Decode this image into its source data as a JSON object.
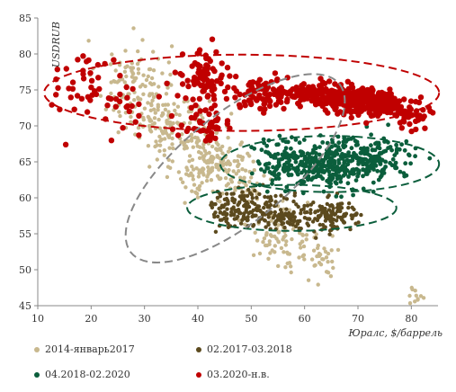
{
  "chart_data": {
    "type": "scatter",
    "xlabel": "Юралс, $/баррель",
    "ylabel": "USDRUB",
    "xlim": [
      10,
      85
    ],
    "ylim": [
      45,
      85
    ],
    "x_ticks": [
      10,
      20,
      30,
      40,
      50,
      60,
      70,
      80
    ],
    "y_ticks": [
      45,
      50,
      55,
      60,
      65,
      70,
      75,
      80,
      85
    ],
    "grid": false,
    "legend_position": "bottom",
    "series": [
      {
        "name": "2014-январь2017",
        "color": "#c8b88e",
        "marker_size": 2.2,
        "cloud": [
          {
            "cx": 28,
            "cy": 76,
            "sx": 3.5,
            "sy": 3.0,
            "n": 110
          },
          {
            "cx": 35,
            "cy": 70,
            "sx": 3.5,
            "sy": 2.2,
            "n": 120
          },
          {
            "cx": 42,
            "cy": 65,
            "sx": 3.0,
            "sy": 2.5,
            "n": 150
          },
          {
            "cx": 48,
            "cy": 63,
            "sx": 2.5,
            "sy": 2.0,
            "n": 60
          },
          {
            "cx": 56,
            "cy": 55,
            "sx": 3.5,
            "sy": 2.5,
            "n": 90
          },
          {
            "cx": 63,
            "cy": 51,
            "sx": 2.0,
            "sy": 1.5,
            "n": 30
          },
          {
            "cx": 81,
            "cy": 46.5,
            "sx": 1.2,
            "sy": 0.6,
            "n": 12
          }
        ]
      },
      {
        "name": "02.2017-03.2018",
        "color": "#5c4a1e",
        "marker_size": 2.2,
        "cloud": [
          {
            "cx": 48,
            "cy": 58.5,
            "sx": 3.0,
            "sy": 1.3,
            "n": 140
          },
          {
            "cx": 56,
            "cy": 58,
            "sx": 2.5,
            "sy": 1.3,
            "n": 90
          },
          {
            "cx": 65,
            "cy": 57.5,
            "sx": 3.0,
            "sy": 1.1,
            "n": 120
          }
        ]
      },
      {
        "name": "04.2018-02.2020",
        "color": "#0b5e3c",
        "marker_size": 2.4,
        "cloud": [
          {
            "cx": 64,
            "cy": 64.5,
            "sx": 5.0,
            "sy": 1.6,
            "n": 330
          },
          {
            "cx": 73,
            "cy": 65.5,
            "sx": 4.0,
            "sy": 1.4,
            "n": 120
          },
          {
            "cx": 55,
            "cy": 65.5,
            "sx": 2.5,
            "sy": 1.5,
            "n": 60
          }
        ]
      },
      {
        "name": "03.2020-н.в.",
        "color": "#c00000",
        "marker_size": 3.2,
        "cloud": [
          {
            "cx": 19,
            "cy": 76.5,
            "sx": 3.5,
            "sy": 2.0,
            "n": 35
          },
          {
            "cx": 27,
            "cy": 73,
            "sx": 3.0,
            "sy": 2.0,
            "n": 25
          },
          {
            "cx": 41,
            "cy": 76,
            "sx": 2.0,
            "sy": 2.2,
            "n": 90
          },
          {
            "cx": 42,
            "cy": 70,
            "sx": 2.5,
            "sy": 1.0,
            "n": 35
          },
          {
            "cx": 52,
            "cy": 74.5,
            "sx": 4.0,
            "sy": 1.2,
            "n": 90
          },
          {
            "cx": 66,
            "cy": 74,
            "sx": 5.0,
            "sy": 1.0,
            "n": 200
          },
          {
            "cx": 73,
            "cy": 73,
            "sx": 3.0,
            "sy": 0.8,
            "n": 200
          },
          {
            "cx": 80,
            "cy": 71.5,
            "sx": 2.0,
            "sy": 1.2,
            "n": 40
          }
        ]
      }
    ],
    "ellipses": [
      {
        "series": "03.2020-н.в.",
        "color": "#c00000",
        "cx": 48.2,
        "cy": 74.6,
        "rx": 37,
        "ry": 5.3,
        "angle": 0
      },
      {
        "series": "04.2018-02.2020",
        "color": "#0b5e3c",
        "cx": 64.7,
        "cy": 64.7,
        "rx": 20.5,
        "ry": 3.9,
        "angle": 0
      },
      {
        "series": "02.2017-03.2018",
        "color": "#0b5e3c",
        "cx": 57.6,
        "cy": 58.6,
        "rx": 19.6,
        "ry": 3.2,
        "angle": 0
      },
      {
        "series": "2014-январь2017",
        "color": "#888888",
        "cx": 47.0,
        "cy": 64.1,
        "rx": 32.2,
        "ry": 4.7,
        "angle": -39
      }
    ]
  }
}
